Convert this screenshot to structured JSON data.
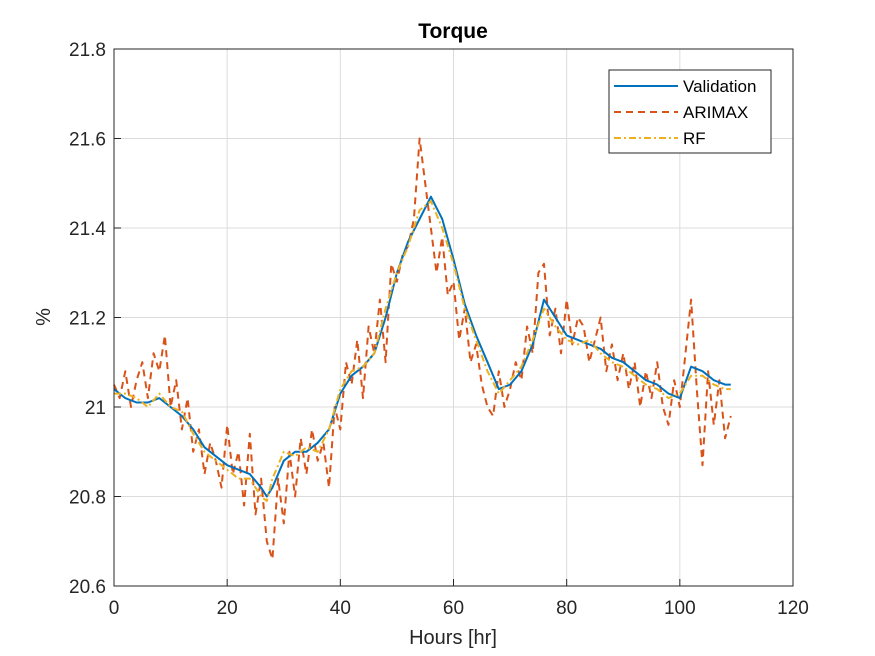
{
  "chart_data": {
    "type": "line",
    "title": "Torque",
    "xlabel": "Hours [hr]",
    "ylabel": "%",
    "xlim": [
      0,
      120
    ],
    "ylim": [
      20.6,
      21.8
    ],
    "xticks": [
      0,
      20,
      40,
      60,
      80,
      100,
      120
    ],
    "yticks": [
      20.6,
      20.8,
      21,
      21.2,
      21.4,
      21.6,
      21.8
    ],
    "xtick_labels": [
      "0",
      "20",
      "40",
      "60",
      "80",
      "100",
      "120"
    ],
    "ytick_labels": [
      "20.6",
      "20.8",
      "21",
      "21.2",
      "21.4",
      "21.6",
      "21.8"
    ],
    "grid": true,
    "legend_position": "top-right",
    "series": [
      {
        "name": "Validation",
        "color": "#0072BD",
        "style": "solid",
        "x": [
          0,
          2,
          4,
          6,
          8,
          10,
          12,
          14,
          16,
          18,
          20,
          22,
          24,
          26,
          27,
          28,
          30,
          32,
          34,
          36,
          38,
          40,
          42,
          44,
          46,
          48,
          50,
          52,
          54,
          56,
          58,
          60,
          62,
          64,
          66,
          68,
          70,
          72,
          74,
          76,
          78,
          80,
          82,
          84,
          86,
          88,
          90,
          92,
          94,
          96,
          98,
          100,
          102,
          104,
          106,
          108,
          109
        ],
        "y": [
          21.04,
          21.02,
          21.01,
          21.01,
          21.02,
          21.0,
          20.98,
          20.95,
          20.91,
          20.89,
          20.87,
          20.86,
          20.85,
          20.82,
          20.8,
          20.82,
          20.88,
          20.9,
          20.9,
          20.92,
          20.95,
          21.03,
          21.07,
          21.09,
          21.12,
          21.2,
          21.3,
          21.37,
          21.42,
          21.47,
          21.42,
          21.33,
          21.23,
          21.16,
          21.1,
          21.04,
          21.05,
          21.08,
          21.14,
          21.24,
          21.2,
          21.16,
          21.15,
          21.14,
          21.13,
          21.11,
          21.1,
          21.08,
          21.06,
          21.05,
          21.03,
          21.02,
          21.09,
          21.08,
          21.06,
          21.05,
          21.05
        ]
      },
      {
        "name": "ARIMAX",
        "color": "#D95319",
        "style": "dashed",
        "x": [
          0,
          1,
          2,
          3,
          4,
          5,
          6,
          7,
          8,
          9,
          10,
          11,
          12,
          13,
          14,
          15,
          16,
          17,
          18,
          19,
          20,
          21,
          22,
          23,
          24,
          25,
          26,
          27,
          28,
          29,
          30,
          31,
          32,
          33,
          34,
          35,
          36,
          37,
          38,
          39,
          40,
          41,
          42,
          43,
          44,
          45,
          46,
          47,
          48,
          49,
          50,
          51,
          52,
          53,
          54,
          55,
          56,
          57,
          58,
          59,
          60,
          61,
          62,
          63,
          64,
          65,
          66,
          67,
          68,
          69,
          70,
          71,
          72,
          73,
          74,
          75,
          76,
          77,
          78,
          79,
          80,
          81,
          82,
          83,
          84,
          85,
          86,
          87,
          88,
          89,
          90,
          91,
          92,
          93,
          94,
          95,
          96,
          97,
          98,
          99,
          100,
          101,
          102,
          103,
          104,
          105,
          106,
          107,
          108,
          109
        ],
        "y": [
          21.05,
          21.02,
          21.08,
          21.0,
          21.06,
          21.1,
          21.02,
          21.12,
          21.08,
          21.16,
          21.0,
          21.06,
          20.95,
          21.02,
          20.9,
          20.95,
          20.85,
          20.92,
          20.88,
          20.82,
          20.96,
          20.85,
          20.9,
          20.78,
          20.94,
          20.76,
          20.84,
          20.7,
          20.66,
          20.84,
          20.74,
          20.9,
          20.8,
          20.93,
          20.85,
          20.95,
          20.88,
          20.92,
          20.82,
          21.0,
          20.95,
          21.1,
          21.05,
          21.15,
          21.02,
          21.18,
          21.12,
          21.24,
          21.1,
          21.32,
          21.28,
          21.34,
          21.36,
          21.42,
          21.6,
          21.5,
          21.4,
          21.3,
          21.38,
          21.25,
          21.28,
          21.15,
          21.22,
          21.1,
          21.14,
          21.05,
          21.0,
          20.98,
          21.08,
          21.0,
          21.04,
          21.1,
          21.06,
          21.18,
          21.12,
          21.3,
          21.32,
          21.16,
          21.22,
          21.12,
          21.24,
          21.14,
          21.2,
          21.18,
          21.1,
          21.15,
          21.2,
          21.08,
          21.14,
          21.06,
          21.12,
          21.04,
          21.1,
          21.0,
          21.08,
          21.02,
          21.1,
          21.0,
          20.96,
          21.06,
          21.0,
          21.12,
          21.24,
          21.04,
          20.87,
          21.08,
          20.96,
          21.06,
          20.93,
          20.98
        ]
      },
      {
        "name": "RF",
        "color": "#EDB120",
        "style": "dash-dot",
        "x": [
          0,
          2,
          4,
          6,
          8,
          10,
          12,
          14,
          16,
          18,
          20,
          22,
          24,
          26,
          27,
          28,
          30,
          32,
          34,
          36,
          38,
          40,
          42,
          44,
          46,
          48,
          50,
          52,
          54,
          56,
          58,
          60,
          62,
          64,
          66,
          68,
          70,
          72,
          74,
          76,
          78,
          80,
          82,
          84,
          86,
          88,
          90,
          92,
          94,
          96,
          98,
          100,
          102,
          104,
          106,
          108,
          109
        ],
        "y": [
          21.03,
          21.03,
          21.02,
          21.0,
          21.03,
          21.0,
          20.99,
          20.94,
          20.9,
          20.88,
          20.86,
          20.84,
          20.84,
          20.8,
          20.79,
          20.84,
          20.9,
          20.89,
          20.91,
          20.9,
          20.95,
          21.04,
          21.08,
          21.09,
          21.12,
          21.22,
          21.3,
          21.36,
          21.44,
          21.46,
          21.4,
          21.32,
          21.22,
          21.15,
          21.08,
          21.03,
          21.06,
          21.09,
          21.15,
          21.22,
          21.18,
          21.15,
          21.14,
          21.15,
          21.12,
          21.1,
          21.09,
          21.07,
          21.05,
          21.04,
          21.02,
          21.03,
          21.07,
          21.07,
          21.05,
          21.04,
          21.04
        ]
      }
    ]
  }
}
